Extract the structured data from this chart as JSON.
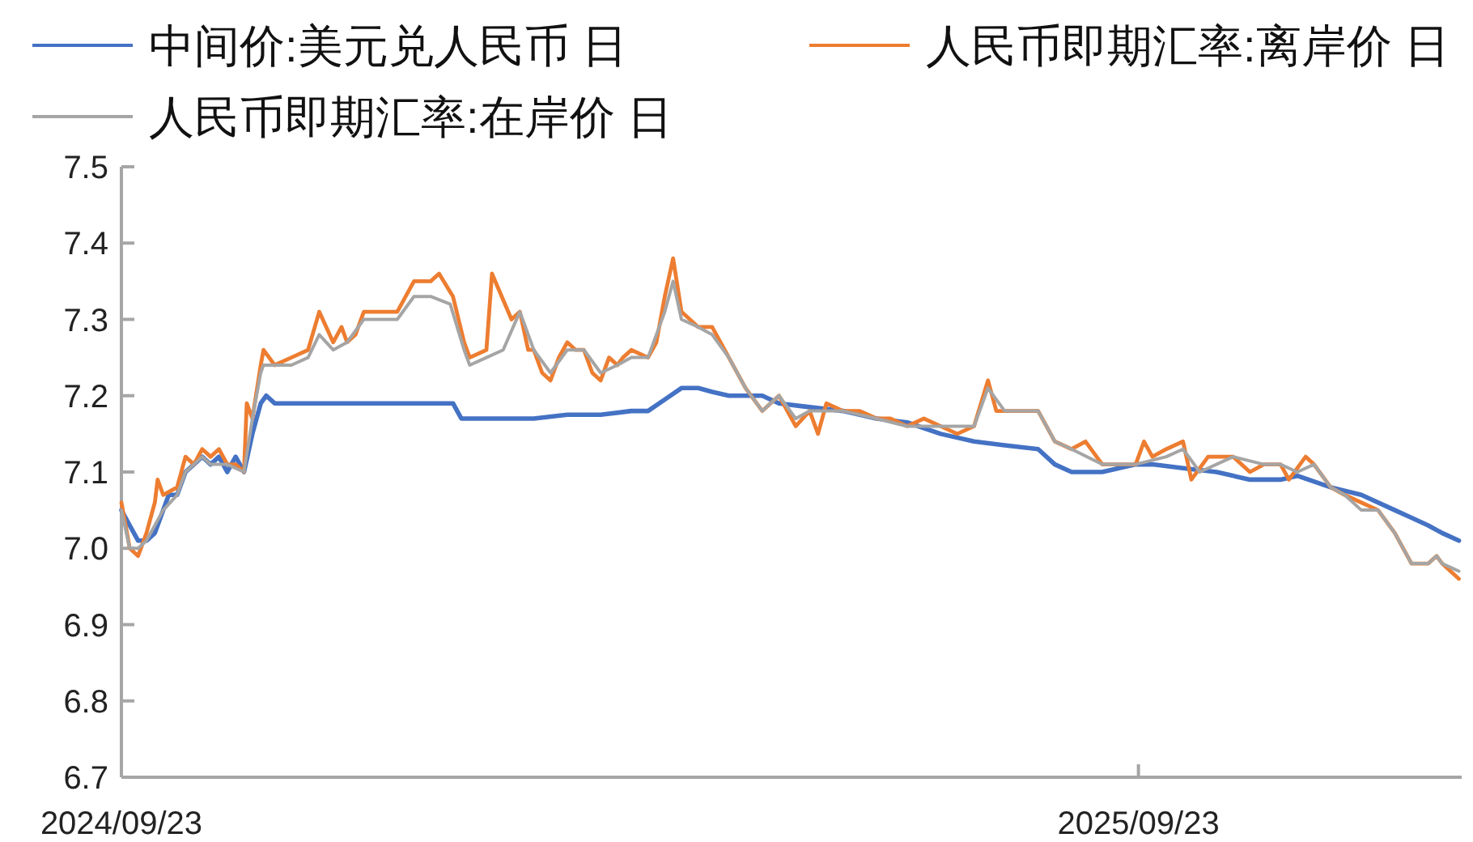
{
  "chart_data": {
    "type": "line",
    "legend": "top",
    "grid": false,
    "marker": "none",
    "line_style": "solid",
    "xlim": [
      "2024-09-23",
      "2026-01-17"
    ],
    "xticks": [
      {
        "value": "2024-09-23",
        "label": "2024/09/23"
      },
      {
        "value": "2025-09-23",
        "label": "2025/09/23"
      }
    ],
    "ylim": [
      6.7,
      7.5
    ],
    "yticks": [
      6.7,
      6.8,
      6.9,
      {
        "value": 7,
        "label": "7.0"
      },
      7.1,
      7.2,
      7.3,
      7.4,
      7.5
    ],
    "series": [
      {
        "name": "中间价:美元兑人民币 日",
        "color": "#4472c4",
        "x": [
          "2024-09-23",
          "2024-09-26",
          "2024-09-29",
          "2024-10-02",
          "2024-10-05",
          "2024-10-08",
          "2024-10-10",
          "2024-10-13",
          "2024-10-16",
          "2024-10-19",
          "2024-10-22",
          "2024-10-25",
          "2024-10-28",
          "2024-10-31",
          "2024-11-03",
          "2024-11-06",
          "2024-11-09",
          "2024-11-12",
          "2024-11-14",
          "2024-11-17",
          "2024-11-23",
          "2024-11-29",
          "2024-12-05",
          "2024-12-16",
          "2025-01-03",
          "2025-01-20",
          "2025-01-23",
          "2025-02-01",
          "2025-02-18",
          "2025-03-02",
          "2025-03-14",
          "2025-03-25",
          "2025-03-31",
          "2025-04-06",
          "2025-04-12",
          "2025-04-18",
          "2025-04-23",
          "2025-04-29",
          "2025-05-05",
          "2025-05-11",
          "2025-05-17",
          "2025-05-28",
          "2025-06-09",
          "2025-06-21",
          "2025-07-02",
          "2025-07-14",
          "2025-07-26",
          "2025-08-06",
          "2025-08-18",
          "2025-08-24",
          "2025-08-30",
          "2025-09-10",
          "2025-09-22",
          "2025-09-28",
          "2025-10-09",
          "2025-10-21",
          "2025-11-02",
          "2025-11-13",
          "2025-11-19",
          "2025-12-01",
          "2025-12-12",
          "2025-12-24",
          "2025-12-30",
          "2026-01-05",
          "2026-01-10",
          "2026-01-16"
        ],
        "values": [
          7.05,
          7.03,
          7.01,
          7.01,
          7.02,
          7.05,
          7.07,
          7.07,
          7.1,
          7.11,
          7.12,
          7.11,
          7.12,
          7.1,
          7.12,
          7.1,
          7.15,
          7.19,
          7.2,
          7.19,
          7.19,
          7.19,
          7.19,
          7.19,
          7.19,
          7.19,
          7.17,
          7.17,
          7.17,
          7.175,
          7.175,
          7.18,
          7.18,
          7.195,
          7.21,
          7.21,
          7.205,
          7.2,
          7.2,
          7.2,
          7.19,
          7.185,
          7.18,
          7.17,
          7.165,
          7.15,
          7.14,
          7.135,
          7.13,
          7.11,
          7.1,
          7.1,
          7.11,
          7.11,
          7.105,
          7.1,
          7.09,
          7.09,
          7.095,
          7.08,
          7.07,
          7.05,
          7.04,
          7.03,
          7.02,
          7.01
        ]
      },
      {
        "name": "人民币即期汇率:离岸价 日",
        "color": "#ed7d31",
        "x": [
          "2024-09-23",
          "2024-09-26",
          "2024-09-29",
          "2024-10-02",
          "2024-10-05",
          "2024-10-06",
          "2024-10-08",
          "2024-10-13",
          "2024-10-16",
          "2024-10-19",
          "2024-10-22",
          "2024-10-25",
          "2024-10-28",
          "2024-10-31",
          "2024-11-03",
          "2024-11-06",
          "2024-11-07",
          "2024-11-09",
          "2024-11-12",
          "2024-11-13",
          "2024-11-17",
          "2024-11-23",
          "2024-11-29",
          "2024-12-03",
          "2024-12-08",
          "2024-12-11",
          "2024-12-13",
          "2024-12-16",
          "2024-12-19",
          "2024-12-25",
          "2024-12-31",
          "2025-01-06",
          "2025-01-12",
          "2025-01-15",
          "2025-01-20",
          "2025-01-24",
          "2025-01-26",
          "2025-02-01",
          "2025-02-03",
          "2025-02-10",
          "2025-02-13",
          "2025-02-16",
          "2025-02-18",
          "2025-02-21",
          "2025-02-24",
          "2025-02-27",
          "2025-03-02",
          "2025-03-05",
          "2025-03-08",
          "2025-03-11",
          "2025-03-14",
          "2025-03-17",
          "2025-03-20",
          "2025-03-22",
          "2025-03-25",
          "2025-03-31",
          "2025-04-03",
          "2025-04-06",
          "2025-04-09",
          "2025-04-12",
          "2025-04-15",
          "2025-04-18",
          "2025-04-23",
          "2025-04-29",
          "2025-05-05",
          "2025-05-11",
          "2025-05-17",
          "2025-05-23",
          "2025-05-28",
          "2025-05-31",
          "2025-06-03",
          "2025-06-09",
          "2025-06-15",
          "2025-06-21",
          "2025-06-26",
          "2025-07-02",
          "2025-07-08",
          "2025-07-14",
          "2025-07-20",
          "2025-07-26",
          "2025-07-31",
          "2025-08-03",
          "2025-08-06",
          "2025-08-12",
          "2025-08-18",
          "2025-08-24",
          "2025-08-30",
          "2025-09-04",
          "2025-09-10",
          "2025-09-16",
          "2025-09-22",
          "2025-09-25",
          "2025-09-28",
          "2025-10-03",
          "2025-10-09",
          "2025-10-12",
          "2025-10-18",
          "2025-10-27",
          "2025-11-02",
          "2025-11-07",
          "2025-11-13",
          "2025-11-16",
          "2025-11-22",
          "2025-11-25",
          "2025-12-01",
          "2025-12-06",
          "2025-12-12",
          "2025-12-18",
          "2025-12-24",
          "2025-12-30",
          "2026-01-05",
          "2026-01-08",
          "2026-01-10",
          "2026-01-16"
        ],
        "values": [
          7.06,
          7.0,
          6.99,
          7.02,
          7.06,
          7.09,
          7.07,
          7.08,
          7.12,
          7.11,
          7.13,
          7.12,
          7.13,
          7.11,
          7.11,
          7.1,
          7.19,
          7.17,
          7.24,
          7.26,
          7.24,
          7.25,
          7.26,
          7.31,
          7.27,
          7.29,
          7.27,
          7.28,
          7.31,
          7.31,
          7.31,
          7.35,
          7.35,
          7.36,
          7.33,
          7.27,
          7.25,
          7.26,
          7.36,
          7.3,
          7.31,
          7.26,
          7.26,
          7.23,
          7.22,
          7.25,
          7.27,
          7.26,
          7.26,
          7.23,
          7.22,
          7.25,
          7.24,
          7.25,
          7.26,
          7.25,
          7.27,
          7.33,
          7.38,
          7.31,
          7.3,
          7.29,
          7.29,
          7.25,
          7.21,
          7.18,
          7.2,
          7.16,
          7.18,
          7.15,
          7.19,
          7.18,
          7.18,
          7.17,
          7.17,
          7.16,
          7.17,
          7.16,
          7.15,
          7.16,
          7.22,
          7.18,
          7.18,
          7.18,
          7.18,
          7.14,
          7.13,
          7.14,
          7.11,
          7.11,
          7.11,
          7.14,
          7.12,
          7.13,
          7.14,
          7.09,
          7.12,
          7.12,
          7.1,
          7.11,
          7.11,
          7.09,
          7.12,
          7.11,
          7.08,
          7.07,
          7.06,
          7.05,
          7.02,
          6.98,
          6.98,
          6.99,
          6.98,
          6.96
        ]
      },
      {
        "name": "人民币即期汇率:在岸价 日",
        "color": "#a5a5a5",
        "x": [
          "2024-09-23",
          "2024-09-26",
          "2024-09-29",
          "2024-10-02",
          "2024-10-08",
          "2024-10-13",
          "2024-10-16",
          "2024-10-19",
          "2024-10-22",
          "2024-10-25",
          "2024-10-31",
          "2024-11-06",
          "2024-11-09",
          "2024-11-12",
          "2024-11-13",
          "2024-11-17",
          "2024-11-23",
          "2024-11-29",
          "2024-12-03",
          "2024-12-08",
          "2024-12-13",
          "2024-12-19",
          "2024-12-31",
          "2025-01-06",
          "2025-01-12",
          "2025-01-19",
          "2025-01-24",
          "2025-01-26",
          "2025-02-01",
          "2025-02-07",
          "2025-02-13",
          "2025-02-18",
          "2025-02-24",
          "2025-03-02",
          "2025-03-08",
          "2025-03-14",
          "2025-03-20",
          "2025-03-25",
          "2025-03-31",
          "2025-04-06",
          "2025-04-09",
          "2025-04-12",
          "2025-04-18",
          "2025-04-23",
          "2025-04-29",
          "2025-05-05",
          "2025-05-11",
          "2025-05-17",
          "2025-05-23",
          "2025-05-28",
          "2025-06-03",
          "2025-06-09",
          "2025-06-21",
          "2025-07-02",
          "2025-07-14",
          "2025-07-26",
          "2025-07-31",
          "2025-08-06",
          "2025-08-18",
          "2025-08-24",
          "2025-08-30",
          "2025-09-10",
          "2025-09-22",
          "2025-10-03",
          "2025-10-09",
          "2025-10-15",
          "2025-10-27",
          "2025-11-07",
          "2025-11-13",
          "2025-11-19",
          "2025-11-25",
          "2025-12-01",
          "2025-12-06",
          "2025-12-12",
          "2025-12-18",
          "2025-12-24",
          "2025-12-30",
          "2026-01-05",
          "2026-01-08",
          "2026-01-10",
          "2026-01-16"
        ],
        "values": [
          7.05,
          7.0,
          7.0,
          7.01,
          7.05,
          7.07,
          7.1,
          7.11,
          7.12,
          7.11,
          7.11,
          7.1,
          7.17,
          7.23,
          7.24,
          7.24,
          7.24,
          7.25,
          7.28,
          7.26,
          7.27,
          7.3,
          7.3,
          7.33,
          7.33,
          7.32,
          7.26,
          7.24,
          7.25,
          7.26,
          7.31,
          7.26,
          7.23,
          7.26,
          7.26,
          7.23,
          7.24,
          7.25,
          7.25,
          7.31,
          7.35,
          7.3,
          7.29,
          7.28,
          7.25,
          7.21,
          7.18,
          7.2,
          7.17,
          7.18,
          7.18,
          7.18,
          7.17,
          7.16,
          7.16,
          7.16,
          7.21,
          7.18,
          7.18,
          7.14,
          7.13,
          7.11,
          7.11,
          7.12,
          7.13,
          7.1,
          7.12,
          7.11,
          7.11,
          7.1,
          7.11,
          7.08,
          7.07,
          7.05,
          7.05,
          7.02,
          6.98,
          6.98,
          6.99,
          6.98,
          6.97
        ]
      }
    ]
  }
}
